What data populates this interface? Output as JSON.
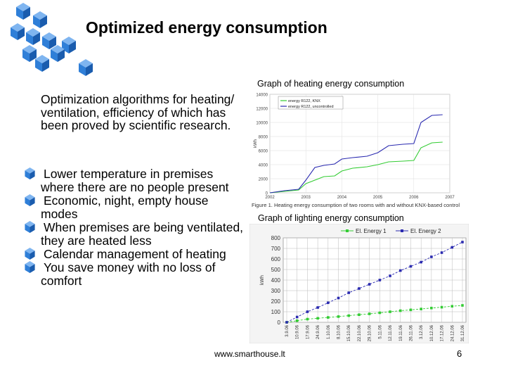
{
  "title": "Optimized energy consumption",
  "intro": "Optimization algorithms for heating/ ventilation, efficiency of which has been proved by scientific research.",
  "bullets": [
    "Lower temperature in premises where there are no people present",
    "Economic, night, empty house modes",
    "When premises are being ventilated, they are heated less",
    "Calendar management of heating",
    "You save money with no loss of comfort"
  ],
  "footer": {
    "url": "www.smarthouse.lt",
    "page": "6"
  },
  "colors": {
    "cube": "#2f7fd8",
    "series_green": "#33cc33",
    "series_blue": "#2a2ab0"
  },
  "chart_data": [
    {
      "type": "line",
      "title": "Graph of heating energy consumption",
      "caption": "Figure 1. Heating energy consumption of two rooms with and without KNX-based control",
      "ylabel": "kWh",
      "xticks": [
        "2002",
        "2003",
        "2004",
        "2005",
        "2006",
        "2007"
      ],
      "yticks": [
        "0",
        "2000",
        "4000",
        "6000",
        "8000",
        "10000",
        "12000",
        "14000"
      ],
      "xlim": [
        2002,
        2007
      ],
      "ylim": [
        0,
        14000
      ],
      "series": [
        {
          "name": "energy R122, KNX",
          "color": "green",
          "x": [
            2002,
            2002.4,
            2002.8,
            2003.0,
            2003.25,
            2003.5,
            2003.8,
            2004.0,
            2004.3,
            2004.7,
            2005.0,
            2005.3,
            2005.7,
            2006.0,
            2006.2,
            2006.5,
            2006.8
          ],
          "values": [
            0,
            200,
            400,
            1300,
            1800,
            2300,
            2400,
            3100,
            3500,
            3700,
            4000,
            4400,
            4500,
            4600,
            6400,
            7100,
            7200
          ]
        },
        {
          "name": "energy R122, uncontrolled",
          "color": "blue",
          "x": [
            2002,
            2002.4,
            2002.8,
            2003.0,
            2003.25,
            2003.5,
            2003.8,
            2004.0,
            2004.3,
            2004.7,
            2005.0,
            2005.3,
            2005.7,
            2006.0,
            2006.2,
            2006.5,
            2006.8
          ],
          "values": [
            0,
            300,
            500,
            1800,
            3600,
            3900,
            4100,
            4800,
            5000,
            5200,
            5700,
            6700,
            6900,
            7000,
            10000,
            11000,
            11100
          ]
        }
      ]
    },
    {
      "type": "line",
      "title": "Graph of lighting energy consumption",
      "ylabel": "kWh",
      "yticks": [
        "0",
        "100",
        "200",
        "300",
        "400",
        "500",
        "600",
        "700",
        "800"
      ],
      "ylim": [
        0,
        800
      ],
      "categories": [
        "3.9.06",
        "10.9.06",
        "17.9.06",
        "24.9.06",
        "1.10.06",
        "8.10.06",
        "15.10.06",
        "22.10.06",
        "29.10.06",
        "5.11.06",
        "12.11.06",
        "19.11.06",
        "26.11.06",
        "3.12.06",
        "10.12.06",
        "17.12.06",
        "24.12.06",
        "31.12.06"
      ],
      "series": [
        {
          "name": "El. Energy 1",
          "color": "green",
          "values": [
            0,
            15,
            30,
            38,
            46,
            54,
            63,
            72,
            80,
            90,
            100,
            110,
            118,
            126,
            135,
            143,
            152,
            160
          ]
        },
        {
          "name": "El. Energy 2",
          "color": "blue",
          "values": [
            0,
            50,
            100,
            140,
            185,
            230,
            280,
            320,
            360,
            400,
            440,
            490,
            530,
            570,
            620,
            660,
            710,
            760
          ]
        }
      ]
    }
  ]
}
